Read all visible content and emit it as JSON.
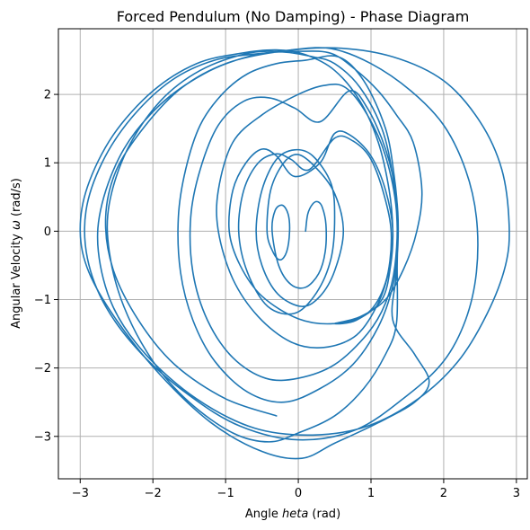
{
  "chart_data": {
    "type": "line",
    "title": "Forced Pendulum (No Damping) - Phase Diagram",
    "xlabel": "Angle $\\theta$ (rad)",
    "xlabel_parts": {
      "prefix": "Angle ",
      "symbol": "heta",
      "suffix": " (rad)"
    },
    "ylabel": "Angular Velocity $\\omega$ (rad/s)",
    "ylabel_parts": {
      "prefix": "Angular Velocity ",
      "symbol": "ω",
      "suffix": " (rad/s)"
    },
    "xlim": [
      -3.3,
      3.15
    ],
    "ylim": [
      -3.62,
      2.96
    ],
    "xticks": [
      -3,
      -2,
      -1,
      0,
      1,
      2,
      3
    ],
    "yticks": [
      -3,
      -2,
      -1,
      0,
      1,
      2
    ],
    "grid": true,
    "legend": "none",
    "series_color": "#1f77b4",
    "series": [
      {
        "points": [
          [
            0.1,
            0.0
          ],
          [
            0.13,
            0.25
          ],
          [
            0.2,
            0.4
          ],
          [
            0.27,
            0.43
          ],
          [
            0.33,
            0.35
          ],
          [
            0.38,
            0.1
          ],
          [
            0.37,
            -0.3
          ],
          [
            0.28,
            -0.62
          ],
          [
            0.1,
            -0.82
          ],
          [
            -0.1,
            -0.78
          ],
          [
            -0.27,
            -0.5
          ],
          [
            -0.36,
            0.0
          ],
          [
            -0.32,
            0.3
          ],
          [
            -0.22,
            0.38
          ],
          [
            -0.14,
            0.25
          ],
          [
            -0.12,
            0.0
          ],
          [
            -0.16,
            -0.3
          ],
          [
            -0.25,
            -0.42
          ],
          [
            -0.35,
            -0.3
          ],
          [
            -0.43,
            0.0
          ],
          [
            -0.38,
            0.6
          ],
          [
            -0.2,
            1.0
          ],
          [
            0.0,
            1.12
          ],
          [
            0.25,
            0.92
          ],
          [
            0.5,
            0.55
          ],
          [
            0.62,
            0.0
          ],
          [
            0.5,
            -0.58
          ],
          [
            0.3,
            -0.95
          ],
          [
            0.05,
            -1.1
          ],
          [
            -0.28,
            -0.92
          ],
          [
            -0.5,
            -0.5
          ],
          [
            -0.58,
            0.0
          ],
          [
            -0.5,
            0.6
          ],
          [
            -0.3,
            1.05
          ],
          [
            -0.05,
            1.19
          ],
          [
            0.2,
            1.1
          ],
          [
            0.45,
            0.7
          ],
          [
            0.5,
            0.2
          ],
          [
            0.45,
            -0.4
          ],
          [
            0.25,
            -0.9
          ],
          [
            -0.05,
            -1.2
          ],
          [
            -0.42,
            -1.1
          ],
          [
            -0.7,
            -0.6
          ],
          [
            -0.82,
            0.0
          ],
          [
            -0.75,
            0.6
          ],
          [
            -0.55,
            1.0
          ],
          [
            -0.3,
            1.13
          ],
          [
            -0.1,
            1.05
          ],
          [
            0.15,
            0.9
          ],
          [
            0.5,
            1.36
          ],
          [
            0.75,
            1.32
          ],
          [
            1.0,
            1.05
          ],
          [
            1.2,
            0.45
          ],
          [
            1.28,
            -0.1
          ],
          [
            1.2,
            -0.75
          ],
          [
            0.95,
            -1.2
          ],
          [
            0.5,
            -1.35
          ],
          [
            0.0,
            -1.28
          ],
          [
            -0.5,
            -0.95
          ],
          [
            -0.8,
            -0.5
          ],
          [
            -0.95,
            0.0
          ],
          [
            -0.9,
            0.6
          ],
          [
            -0.72,
            1.0
          ],
          [
            -0.5,
            1.2
          ],
          [
            -0.3,
            1.1
          ],
          [
            -0.05,
            0.8
          ],
          [
            0.3,
            1.0
          ],
          [
            0.5,
            1.43
          ],
          [
            0.72,
            1.4
          ],
          [
            1.0,
            1.1
          ],
          [
            1.2,
            0.6
          ],
          [
            1.3,
            0.0
          ],
          [
            1.25,
            -0.55
          ],
          [
            1.1,
            -1.05
          ],
          [
            0.8,
            -1.52
          ],
          [
            0.35,
            -1.7
          ],
          [
            -0.1,
            -1.62
          ],
          [
            -0.55,
            -1.25
          ],
          [
            -0.9,
            -0.7
          ],
          [
            -1.1,
            0.0
          ],
          [
            -1.1,
            0.6
          ],
          [
            -0.9,
            1.3
          ],
          [
            -0.5,
            1.7
          ],
          [
            0.0,
            2.0
          ],
          [
            0.35,
            2.13
          ],
          [
            0.65,
            2.1
          ],
          [
            0.95,
            1.7
          ],
          [
            1.2,
            1.1
          ],
          [
            1.35,
            0.3
          ],
          [
            1.33,
            -0.5
          ],
          [
            1.2,
            -1.05
          ],
          [
            0.95,
            -1.5
          ],
          [
            0.5,
            -1.95
          ],
          [
            0.0,
            -2.15
          ],
          [
            -0.45,
            -2.15
          ],
          [
            -0.9,
            -1.85
          ],
          [
            -1.25,
            -1.3
          ],
          [
            -1.45,
            -0.6
          ],
          [
            -1.48,
            0.2
          ],
          [
            -1.35,
            0.9
          ],
          [
            -1.1,
            1.55
          ],
          [
            -0.75,
            1.9
          ],
          [
            -0.4,
            1.95
          ],
          [
            -0.05,
            1.8
          ],
          [
            0.3,
            1.6
          ],
          [
            0.7,
            2.05
          ],
          [
            0.95,
            1.8
          ],
          [
            1.2,
            1.2
          ],
          [
            1.35,
            0.5
          ],
          [
            1.37,
            -0.2
          ],
          [
            1.3,
            -0.8
          ],
          [
            1.1,
            -1.4
          ],
          [
            0.75,
            -1.95
          ],
          [
            0.3,
            -2.3
          ],
          [
            -0.2,
            -2.5
          ],
          [
            -0.7,
            -2.35
          ],
          [
            -1.15,
            -1.9
          ],
          [
            -1.45,
            -1.3
          ],
          [
            -1.62,
            -0.6
          ],
          [
            -1.65,
            0.2
          ],
          [
            -1.55,
            0.9
          ],
          [
            -1.35,
            1.55
          ],
          [
            -1.05,
            2.0
          ],
          [
            -0.7,
            2.3
          ],
          [
            -0.3,
            2.45
          ],
          [
            0.1,
            2.5
          ],
          [
            0.55,
            2.55
          ],
          [
            0.9,
            2.2
          ],
          [
            1.2,
            1.5
          ],
          [
            1.32,
            0.8
          ],
          [
            1.37,
            0.2
          ],
          [
            1.36,
            -0.5
          ],
          [
            1.35,
            -1.35
          ],
          [
            1.2,
            -1.8
          ],
          [
            0.9,
            -2.3
          ],
          [
            0.5,
            -2.7
          ],
          [
            0.0,
            -2.95
          ],
          [
            -0.4,
            -3.08
          ],
          [
            -0.9,
            -2.95
          ],
          [
            -1.5,
            -2.5
          ],
          [
            -2.0,
            -1.9
          ],
          [
            -2.4,
            -1.1
          ],
          [
            -2.6,
            -0.3
          ],
          [
            -2.6,
            0.4
          ],
          [
            -2.35,
            1.2
          ],
          [
            -1.9,
            1.9
          ],
          [
            -1.35,
            2.35
          ],
          [
            -0.7,
            2.6
          ],
          [
            -0.2,
            2.62
          ],
          [
            0.2,
            2.55
          ],
          [
            0.5,
            2.45
          ],
          [
            0.85,
            2.1
          ],
          [
            1.15,
            1.5
          ],
          [
            1.3,
            0.8
          ],
          [
            1.36,
            0.1
          ],
          [
            1.35,
            -0.6
          ],
          [
            1.3,
            -1.3
          ],
          [
            1.6,
            -1.8
          ],
          [
            1.8,
            -2.2
          ],
          [
            1.6,
            -2.5
          ],
          [
            1.1,
            -2.8
          ],
          [
            0.5,
            -3.1
          ],
          [
            0.05,
            -3.32
          ],
          [
            -0.5,
            -3.22
          ],
          [
            -1.2,
            -2.8
          ],
          [
            -1.9,
            -2.1
          ],
          [
            -2.5,
            -1.3
          ],
          [
            -2.88,
            -0.6
          ],
          [
            -3.0,
            0.0
          ],
          [
            -2.9,
            0.65
          ],
          [
            -2.55,
            1.4
          ],
          [
            -2.0,
            2.05
          ],
          [
            -1.4,
            2.45
          ],
          [
            -0.8,
            2.6
          ],
          [
            -0.3,
            2.65
          ],
          [
            0.1,
            2.58
          ],
          [
            0.5,
            2.35
          ],
          [
            0.85,
            1.9
          ],
          [
            1.1,
            1.3
          ],
          [
            1.25,
            0.6
          ],
          [
            1.3,
            0.0
          ],
          [
            1.27,
            -0.5
          ],
          [
            1.15,
            -1.0
          ],
          [
            0.8,
            -1.3
          ],
          [
            0.5,
            -1.35
          ],
          [
            0.85,
            -1.25
          ],
          [
            1.2,
            -1.0
          ],
          [
            1.45,
            -0.55
          ],
          [
            1.63,
            0.0
          ],
          [
            1.7,
            0.6
          ],
          [
            1.58,
            1.3
          ],
          [
            1.35,
            1.7
          ],
          [
            1.1,
            2.05
          ],
          [
            0.8,
            2.35
          ],
          [
            0.45,
            2.6
          ],
          [
            0.0,
            2.63
          ],
          [
            -0.5,
            2.6
          ],
          [
            -1.15,
            2.5
          ],
          [
            -1.75,
            2.2
          ],
          [
            -2.3,
            1.65
          ],
          [
            -2.7,
            1.0
          ],
          [
            -2.92,
            0.3
          ],
          [
            -2.9,
            -0.4
          ],
          [
            -2.65,
            -1.1
          ],
          [
            -2.15,
            -1.8
          ],
          [
            -1.5,
            -2.4
          ],
          [
            -0.8,
            -2.85
          ],
          [
            0.0,
            -3.05
          ],
          [
            0.8,
            -2.9
          ],
          [
            1.5,
            -2.4
          ],
          [
            2.0,
            -1.9
          ],
          [
            2.3,
            -1.3
          ],
          [
            2.45,
            -0.6
          ],
          [
            2.45,
            0.2
          ],
          [
            2.3,
            0.9
          ],
          [
            2.0,
            1.55
          ],
          [
            1.55,
            2.05
          ],
          [
            1.0,
            2.45
          ],
          [
            0.45,
            2.67
          ],
          [
            -0.1,
            2.65
          ],
          [
            -0.7,
            2.55
          ],
          [
            -1.3,
            2.3
          ],
          [
            -1.9,
            1.85
          ],
          [
            -2.4,
            1.2
          ],
          [
            -2.7,
            0.4
          ],
          [
            -2.75,
            -0.3
          ],
          [
            -2.55,
            -1.1
          ],
          [
            -2.1,
            -1.8
          ],
          [
            -1.4,
            -2.45
          ],
          [
            -0.6,
            -2.88
          ],
          [
            0.2,
            -2.98
          ],
          [
            0.95,
            -2.85
          ],
          [
            1.65,
            -2.45
          ],
          [
            2.2,
            -1.9
          ],
          [
            2.6,
            -1.2
          ],
          [
            2.85,
            -0.5
          ],
          [
            2.9,
            0.1
          ],
          [
            2.8,
            0.9
          ],
          [
            2.5,
            1.6
          ],
          [
            2.0,
            2.2
          ],
          [
            1.3,
            2.55
          ],
          [
            0.5,
            2.68
          ],
          [
            -0.3,
            2.62
          ],
          [
            -1.0,
            2.45
          ],
          [
            -1.6,
            2.1
          ],
          [
            -2.1,
            1.55
          ],
          [
            -2.5,
            0.9
          ],
          [
            -2.65,
            0.2
          ],
          [
            -2.55,
            -0.55
          ],
          [
            -2.2,
            -1.3
          ],
          [
            -1.7,
            -1.95
          ],
          [
            -1.0,
            -2.45
          ],
          [
            -0.3,
            -2.7
          ]
        ]
      }
    ]
  }
}
